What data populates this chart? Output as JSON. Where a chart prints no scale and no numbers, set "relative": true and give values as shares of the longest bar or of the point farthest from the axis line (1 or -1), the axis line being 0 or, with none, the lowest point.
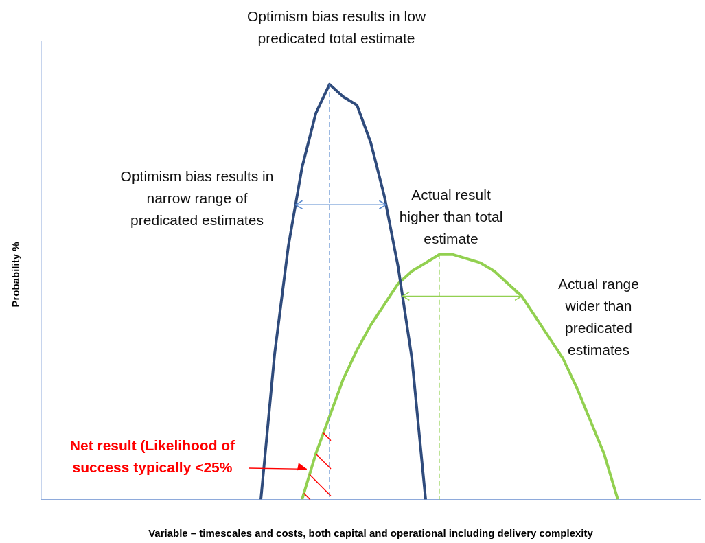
{
  "chart_data": {
    "type": "line",
    "relative": true,
    "xlabel": "Variable – timescales and costs, both capital and operational including delivery complexity",
    "ylabel": "Probability %",
    "categories": [
      null,
      null,
      null,
      null,
      null,
      null,
      null,
      null,
      null,
      null,
      null,
      null,
      null,
      null,
      null,
      null,
      null,
      null,
      null,
      null,
      null,
      null,
      null,
      null,
      null,
      null,
      null,
      null,
      null,
      null,
      null,
      null,
      null,
      null,
      null,
      null,
      null,
      null,
      null,
      null,
      null,
      null,
      null,
      null,
      null,
      null,
      null,
      null,
      null
    ],
    "series": [
      {
        "color": "#2f4b7c",
        "values": [
          null,
          null,
          null,
          null,
          null,
          null,
          null,
          null,
          null,
          null,
          null,
          null,
          null,
          null,
          null,
          null,
          0,
          0.35,
          0.61,
          0.8,
          0.93,
          1,
          0.97,
          0.95,
          0.86,
          0.73,
          0.56,
          0.34,
          0,
          null,
          null,
          null,
          null,
          null,
          null,
          null,
          null,
          null,
          null,
          null,
          null,
          null,
          null,
          null,
          null,
          null,
          null,
          null,
          null
        ]
      },
      {
        "color": "#92d050",
        "values": [
          null,
          null,
          null,
          null,
          null,
          null,
          null,
          null,
          null,
          null,
          null,
          null,
          null,
          null,
          null,
          null,
          null,
          null,
          null,
          0,
          0.11,
          0.2,
          0.29,
          0.36,
          0.42,
          0.47,
          0.52,
          0.55,
          0.57,
          0.59,
          0.59,
          0.58,
          0.57,
          0.55,
          0.52,
          0.49,
          0.44,
          0.39,
          0.34,
          0.27,
          0.19,
          0.11,
          0,
          null,
          null,
          null,
          null,
          null,
          null
        ]
      }
    ],
    "annotations": [
      "Optimism bias results in low predicated total estimate",
      "Optimism bias results in narrow range of predicated estimates",
      "Actual result higher than total estimate",
      "Actual range wider than predicated estimates",
      "Net result (Likelihood of success typically <25%"
    ],
    "legend": false,
    "grid": false,
    "marker": "none",
    "line_style": "solid"
  }
}
